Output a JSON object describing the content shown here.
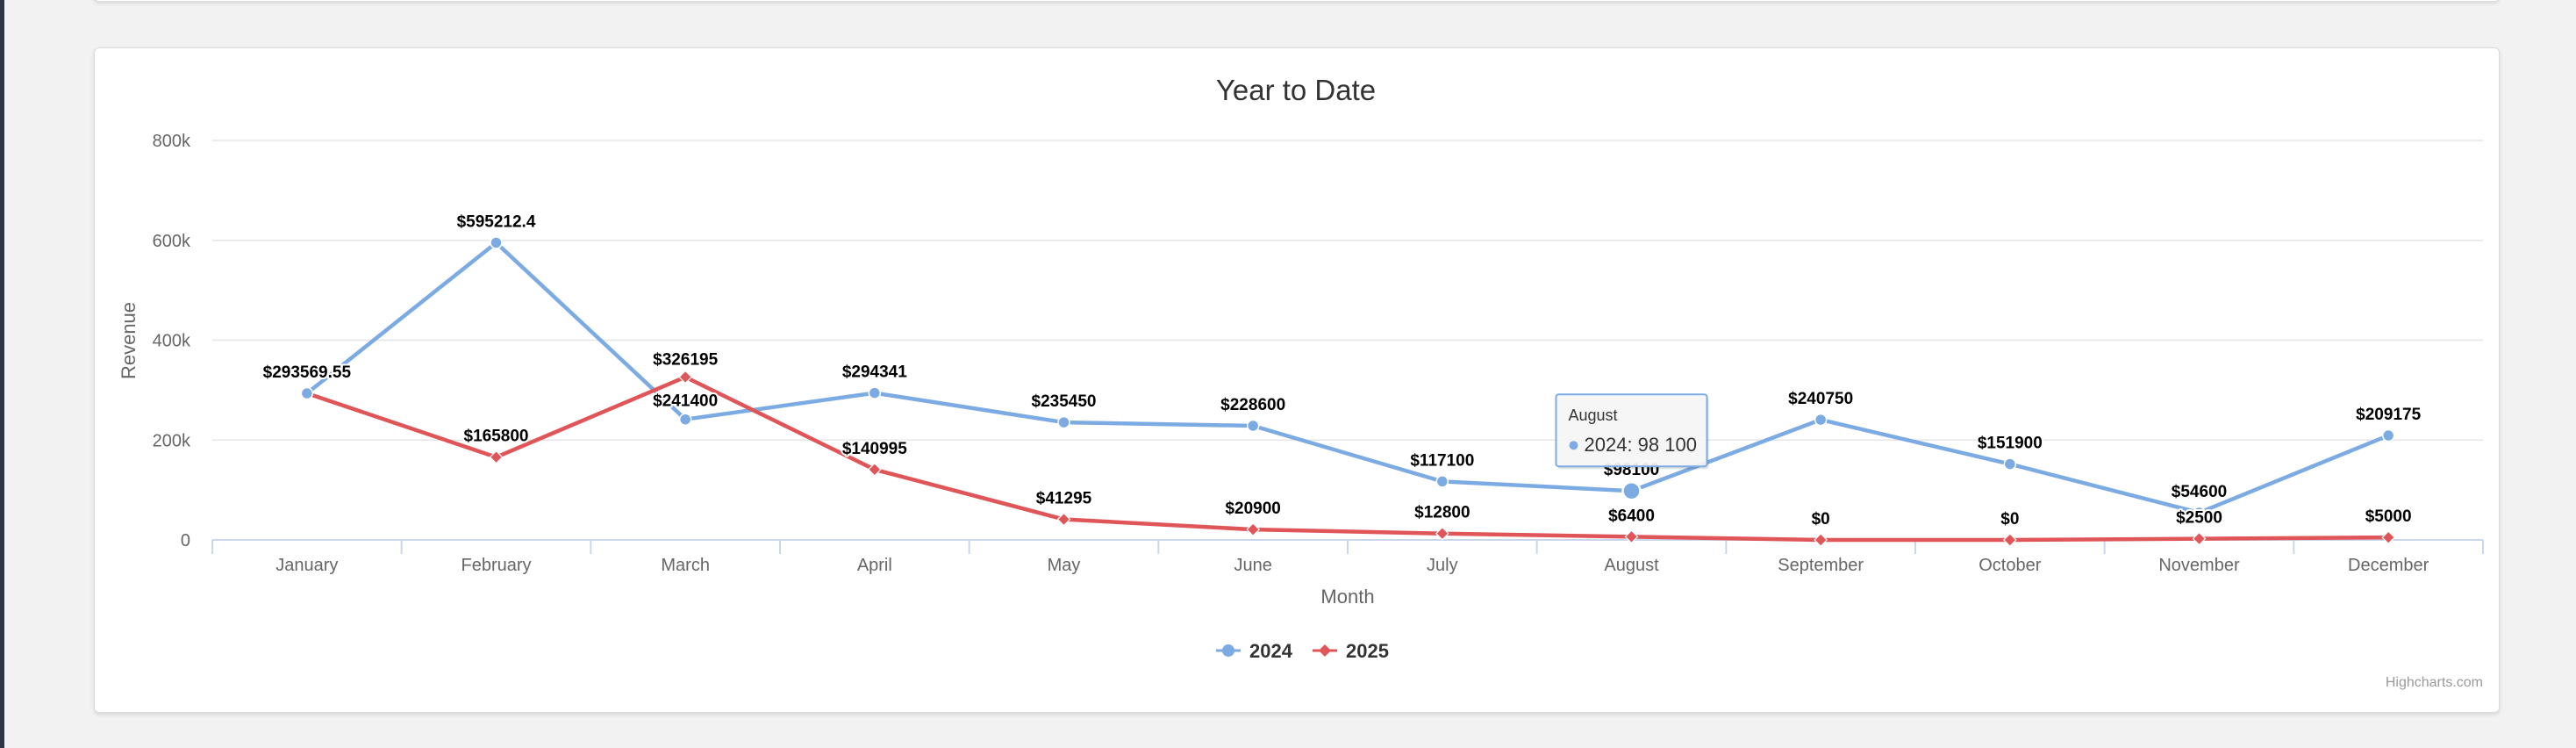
{
  "chart_data": {
    "type": "line",
    "title": "Year to Date",
    "xlabel": "Month",
    "ylabel": "Revenue",
    "categories": [
      "January",
      "February",
      "March",
      "April",
      "May",
      "June",
      "July",
      "August",
      "September",
      "October",
      "November",
      "December"
    ],
    "y_ticks": [
      "0",
      "200k",
      "400k",
      "600k",
      "800k"
    ],
    "ylim": [
      0,
      800000
    ],
    "grid": true,
    "legend_position": "bottom-center",
    "series": [
      {
        "name": "2024",
        "color": "#7cabe3",
        "marker": "circle",
        "values": [
          293569.55,
          595212.4,
          241400,
          294341,
          235450,
          228600,
          117100,
          98100,
          240750,
          151900,
          54600,
          209175
        ],
        "labels": [
          "$293569.55",
          "$595212.4",
          "$241400",
          "$294341",
          "$235450",
          "$228600",
          "$117100",
          "$98100",
          "$240750",
          "$151900",
          "$54600",
          "$209175"
        ]
      },
      {
        "name": "2025",
        "color": "#e05557",
        "marker": "diamond",
        "values": [
          293569.55,
          165800,
          326195,
          140995,
          41295,
          20900,
          12800,
          6400,
          0,
          0,
          2500,
          5000
        ],
        "labels": [
          "",
          "$165800",
          "$326195",
          "$140995",
          "$41295",
          "$20900",
          "$12800",
          "$6400",
          "$0",
          "$0",
          "$2500",
          "$5000"
        ]
      }
    ],
    "tooltip": {
      "title": "August",
      "text": "2024: 98 100",
      "series_index": 0,
      "point_index": 7
    },
    "credits": "Highcharts.com"
  }
}
